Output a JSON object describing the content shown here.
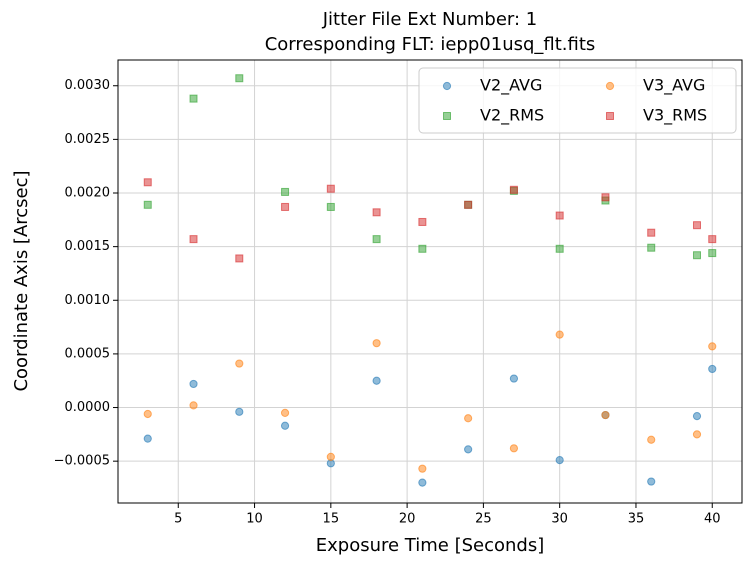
{
  "chart_data": {
    "type": "scatter",
    "title": "Jitter File Ext Number: 1",
    "subtitle": "Corresponding FLT: iepp01usq_flt.fits",
    "x_label": "Exposure Time [Seconds]",
    "y_label": "Coordinate Axis [Arcsec]",
    "x": [
      3,
      6,
      9,
      12,
      15,
      18,
      21,
      24,
      27,
      30,
      33,
      36,
      39,
      40
    ],
    "series": [
      {
        "name": "V2_AVG",
        "color": "#1f77b4",
        "marker": "circle",
        "values": [
          -0.00029,
          0.00022,
          -4e-05,
          -0.00017,
          -0.00052,
          0.00025,
          -0.0007,
          -0.00039,
          0.00027,
          -0.00049,
          -7e-05,
          -0.00069,
          -8e-05,
          0.00036
        ]
      },
      {
        "name": "V3_AVG",
        "color": "#ff7f0e",
        "marker": "circle",
        "values": [
          -6e-05,
          2e-05,
          0.00041,
          -5e-05,
          -0.00046,
          0.0006,
          -0.00057,
          -0.0001,
          -0.00038,
          0.00068,
          -7e-05,
          -0.0003,
          -0.00025,
          0.00057
        ]
      },
      {
        "name": "V2_RMS",
        "color": "#2ca02c",
        "marker": "square",
        "values": [
          0.00189,
          0.00288,
          0.00307,
          0.00201,
          0.00187,
          0.00157,
          0.00148,
          0.00189,
          0.00202,
          0.00148,
          0.00193,
          0.00149,
          0.00142,
          0.00144
        ]
      },
      {
        "name": "V3_RMS",
        "color": "#d62728",
        "marker": "square",
        "values": [
          0.0021,
          0.00157,
          0.00139,
          0.00187,
          0.00204,
          0.00182,
          0.00173,
          0.00189,
          0.00203,
          0.00179,
          0.00196,
          0.00163,
          0.0017,
          0.00157
        ]
      }
    ],
    "xlim": [
      1.05,
      41.95
    ],
    "ylim": [
      -0.00089,
      0.00324
    ],
    "xticks": [
      5,
      10,
      15,
      20,
      25,
      30,
      35,
      40
    ],
    "yticks": [
      {
        "value": -0.0005,
        "label": "−0.0005"
      },
      {
        "value": 0,
        "label": "0.0000"
      },
      {
        "value": 0.0005,
        "label": "0.0005"
      },
      {
        "value": 0.001,
        "label": "0.0010"
      },
      {
        "value": 0.0015,
        "label": "0.0015"
      },
      {
        "value": 0.002,
        "label": "0.0020"
      },
      {
        "value": 0.0025,
        "label": "0.0025"
      },
      {
        "value": 0.003,
        "label": "0.0030"
      }
    ],
    "grid": true,
    "legend_position": "upper-right",
    "legend_columns": 2
  }
}
